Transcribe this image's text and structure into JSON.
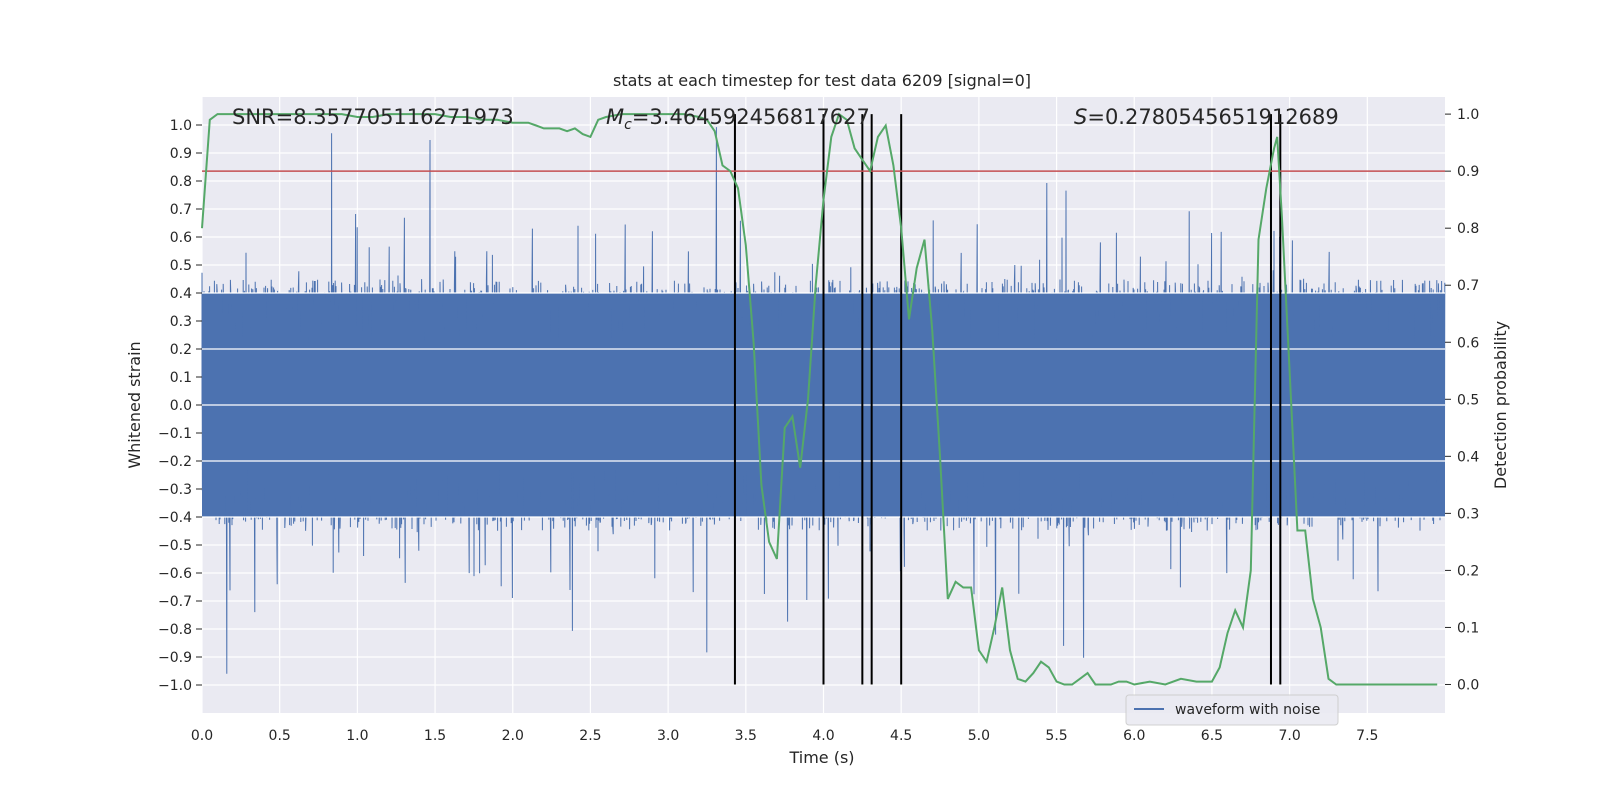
{
  "chart_data": {
    "type": "line",
    "title": "stats at each timestep for test data 6209 [signal=0]",
    "xlabel": "Time (s)",
    "ylabel": "Whitened strain",
    "y2label": "Detection probability",
    "xlim": [
      0.0,
      8.0
    ],
    "ylim": [
      -1.1,
      1.1
    ],
    "y2lim": [
      -0.05,
      1.03
    ],
    "x_ticks": [
      "0.0",
      "0.5",
      "1.0",
      "1.5",
      "2.0",
      "2.5",
      "3.0",
      "3.5",
      "4.0",
      "4.5",
      "5.0",
      "5.5",
      "6.0",
      "6.5",
      "7.0",
      "7.5"
    ],
    "y_ticks": [
      "1.0",
      "0.9",
      "0.8",
      "0.7",
      "0.6",
      "0.5",
      "0.4",
      "0.3",
      "0.2",
      "0.1",
      "0.0",
      "−0.1",
      "−0.2",
      "−0.3",
      "−0.4",
      "−0.5",
      "−0.6",
      "−0.7",
      "−0.8",
      "−0.9",
      "−1.0"
    ],
    "y2_ticks": [
      "1.0",
      "0.9",
      "0.8",
      "0.7",
      "0.6",
      "0.5",
      "0.4",
      "0.3",
      "0.2",
      "0.1",
      "0.0"
    ],
    "grid": true,
    "annotations": {
      "snr": "SNR=8.357705116271973",
      "mc_symbol": "M",
      "mc_sub": "c",
      "mc_value": "=3.464592456817627",
      "s_symbol": "S",
      "s_value": "=0.2780545651912689"
    },
    "threshold": 0.9,
    "vertical_lines_x": [
      3.43,
      4.0,
      4.25,
      4.31,
      4.5,
      6.88,
      6.94
    ],
    "legend": {
      "entries": [
        "waveform with noise"
      ],
      "position": "lower-right"
    },
    "series": [
      {
        "name": "waveform with noise",
        "axis": "left",
        "color": "#4c72b0",
        "description": "noise band approx ±0.45 with spikes to ±1.0"
      },
      {
        "name": "detection probability",
        "axis": "right",
        "color": "#55a868",
        "x": [
          0.0,
          0.05,
          0.1,
          0.2,
          0.3,
          0.4,
          0.5,
          0.6,
          0.7,
          0.8,
          0.9,
          1.0,
          1.1,
          1.2,
          1.3,
          1.4,
          1.5,
          1.6,
          1.7,
          1.8,
          1.9,
          2.0,
          2.1,
          2.15,
          2.2,
          2.25,
          2.3,
          2.35,
          2.4,
          2.45,
          2.5,
          2.55,
          2.6,
          2.7,
          2.8,
          2.9,
          3.0,
          3.1,
          3.2,
          3.25,
          3.3,
          3.35,
          3.4,
          3.45,
          3.5,
          3.55,
          3.6,
          3.65,
          3.7,
          3.75,
          3.8,
          3.85,
          3.9,
          3.95,
          4.0,
          4.05,
          4.1,
          4.15,
          4.2,
          4.25,
          4.3,
          4.35,
          4.4,
          4.45,
          4.5,
          4.55,
          4.6,
          4.65,
          4.7,
          4.75,
          4.8,
          4.85,
          4.9,
          4.95,
          5.0,
          5.05,
          5.1,
          5.15,
          5.2,
          5.25,
          5.3,
          5.35,
          5.4,
          5.45,
          5.5,
          5.55,
          5.6,
          5.65,
          5.7,
          5.75,
          5.8,
          5.85,
          5.9,
          5.95,
          6.0,
          6.1,
          6.2,
          6.3,
          6.4,
          6.5,
          6.55,
          6.6,
          6.65,
          6.7,
          6.75,
          6.8,
          6.85,
          6.9,
          6.92,
          6.95,
          7.0,
          7.05,
          7.1,
          7.15,
          7.2,
          7.25,
          7.3,
          7.4,
          7.5,
          7.6,
          7.7,
          7.8,
          7.9,
          7.95
        ],
        "values": [
          0.8,
          0.99,
          1.0,
          1.0,
          1.0,
          1.0,
          1.0,
          1.0,
          1.0,
          1.0,
          1.0,
          0.995,
          0.995,
          1.0,
          1.0,
          1.0,
          1.0,
          0.995,
          0.995,
          0.99,
          0.99,
          0.985,
          0.985,
          0.98,
          0.975,
          0.975,
          0.975,
          0.97,
          0.975,
          0.965,
          0.96,
          0.99,
          0.995,
          1.0,
          1.0,
          1.0,
          1.0,
          1.0,
          0.995,
          0.99,
          0.97,
          0.91,
          0.9,
          0.87,
          0.77,
          0.6,
          0.35,
          0.25,
          0.22,
          0.45,
          0.47,
          0.38,
          0.5,
          0.7,
          0.85,
          0.96,
          1.0,
          0.99,
          0.94,
          0.92,
          0.9,
          0.96,
          0.98,
          0.91,
          0.8,
          0.64,
          0.73,
          0.78,
          0.62,
          0.4,
          0.15,
          0.18,
          0.17,
          0.17,
          0.06,
          0.04,
          0.1,
          0.17,
          0.06,
          0.01,
          0.005,
          0.02,
          0.04,
          0.03,
          0.005,
          0.0,
          0.0,
          0.01,
          0.02,
          0.0,
          0.0,
          0.0,
          0.005,
          0.005,
          0.0,
          0.005,
          0.0,
          0.01,
          0.005,
          0.005,
          0.03,
          0.09,
          0.13,
          0.1,
          0.2,
          0.78,
          0.87,
          0.94,
          0.96,
          0.82,
          0.55,
          0.27,
          0.27,
          0.15,
          0.1,
          0.01,
          0.0,
          0.0,
          0.0,
          0.0,
          0.0,
          0.0,
          0.0,
          0.0
        ]
      }
    ]
  }
}
